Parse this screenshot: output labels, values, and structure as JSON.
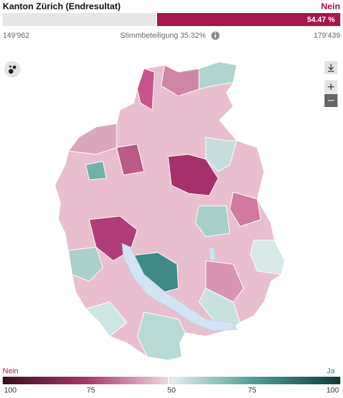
{
  "header": {
    "title": "Kanton Zürich (Endresultat)",
    "result": "Nein",
    "percent": "54.47 %"
  },
  "votes": {
    "ja": {
      "value": 149962,
      "label": "149'962"
    },
    "nein": {
      "value": 179439,
      "label": "179'439"
    }
  },
  "turnout": "Stimmbeteiligung 35.32%",
  "legend": {
    "left": "Nein",
    "right": "Ja",
    "ticks": [
      100,
      75,
      50,
      75,
      100
    ]
  }
}
